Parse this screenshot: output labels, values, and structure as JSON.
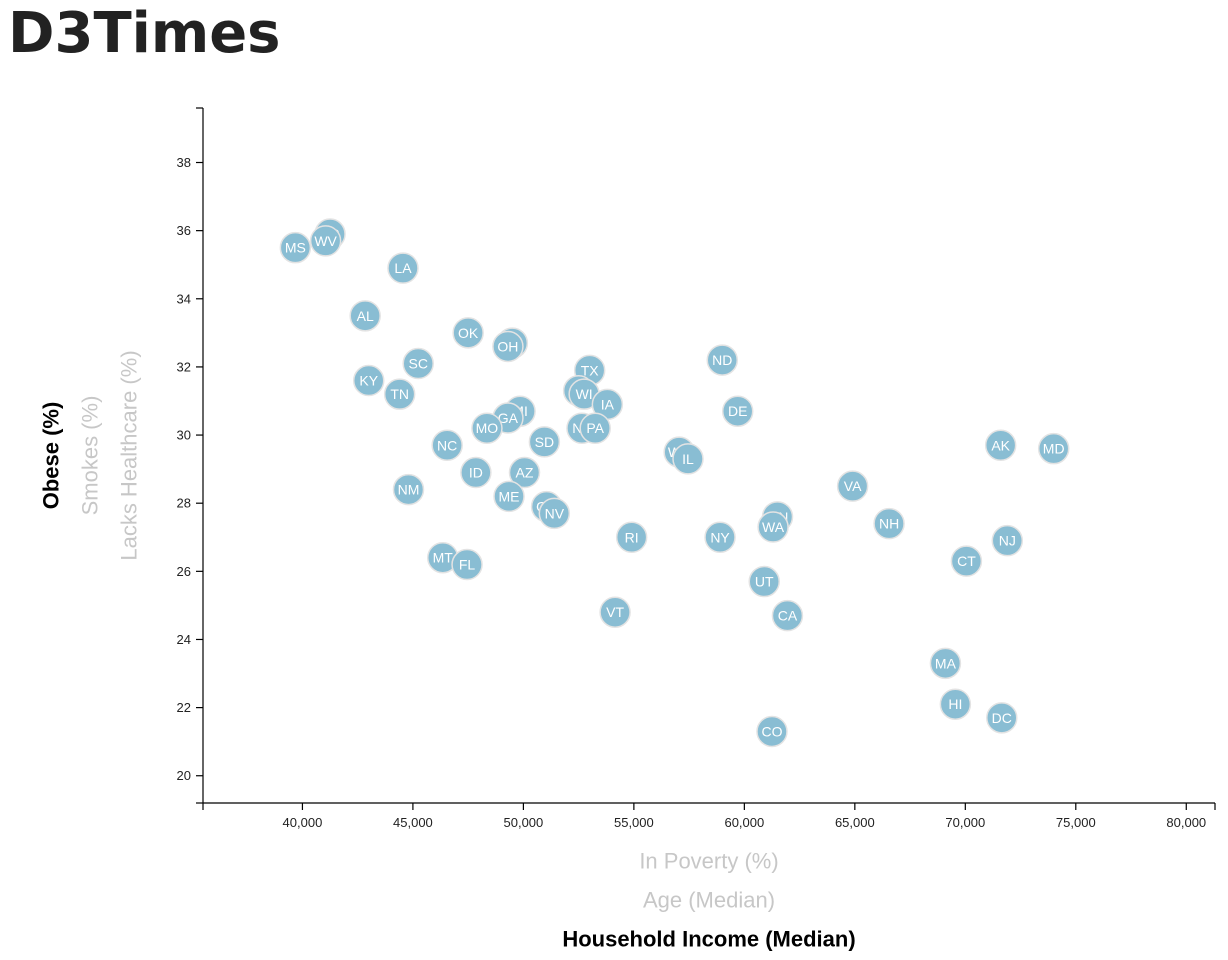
{
  "page": {
    "title": "D3Times"
  },
  "chart_data": {
    "type": "scatter",
    "x_active": "Household Income (Median)",
    "y_active": "Obese (%)",
    "x_axis_options": [
      {
        "label": "In Poverty (%)",
        "active": false
      },
      {
        "label": "Age (Median)",
        "active": false
      },
      {
        "label": "Household Income (Median)",
        "active": true
      }
    ],
    "y_axis_options": [
      {
        "label": "Obese (%)",
        "active": true
      },
      {
        "label": "Smokes (%)",
        "active": false
      },
      {
        "label": "Lacks Healthcare (%)",
        "active": false
      }
    ],
    "xlim": [
      35500,
      81300
    ],
    "ylim": [
      19.2,
      39.6
    ],
    "x_ticks": [
      40000,
      45000,
      50000,
      55000,
      60000,
      65000,
      70000,
      75000,
      80000
    ],
    "x_tick_labels": [
      "40,000",
      "45,000",
      "50,000",
      "55,000",
      "60,000",
      "65,000",
      "70,000",
      "75,000",
      "80,000"
    ],
    "y_ticks": [
      20,
      22,
      24,
      26,
      28,
      30,
      32,
      34,
      36,
      38
    ],
    "y_tick_labels": [
      "20",
      "22",
      "24",
      "26",
      "28",
      "30",
      "32",
      "34",
      "36",
      "38"
    ],
    "colors": {
      "marker": "#89bdd3",
      "marker_stroke": "#e3e3e3",
      "label": "#ffffff"
    },
    "points": [
      {
        "label": "MS",
        "x": 39680,
        "y": 35.5
      },
      {
        "label": "AR",
        "x": 41250,
        "y": 35.9
      },
      {
        "label": "WV",
        "x": 41050,
        "y": 35.7
      },
      {
        "label": "LA",
        "x": 44550,
        "y": 34.9
      },
      {
        "label": "AL",
        "x": 42840,
        "y": 33.5
      },
      {
        "label": "OK",
        "x": 47500,
        "y": 33.0
      },
      {
        "label": "IN",
        "x": 49500,
        "y": 32.7
      },
      {
        "label": "OH",
        "x": 49300,
        "y": 32.6
      },
      {
        "label": "SC",
        "x": 45240,
        "y": 32.1
      },
      {
        "label": "KY",
        "x": 43000,
        "y": 31.6
      },
      {
        "label": "TN",
        "x": 44400,
        "y": 31.2
      },
      {
        "label": "ND",
        "x": 59000,
        "y": 32.2
      },
      {
        "label": "TX",
        "x": 53000,
        "y": 31.9
      },
      {
        "label": "KS",
        "x": 52500,
        "y": 31.3
      },
      {
        "label": "WI",
        "x": 52750,
        "y": 31.2
      },
      {
        "label": "IA",
        "x": 53800,
        "y": 30.9
      },
      {
        "label": "DE",
        "x": 59700,
        "y": 30.7
      },
      {
        "label": "MI",
        "x": 49850,
        "y": 30.7
      },
      {
        "label": "GA",
        "x": 49300,
        "y": 30.5
      },
      {
        "label": "MO",
        "x": 48350,
        "y": 30.2
      },
      {
        "label": "NE",
        "x": 52650,
        "y": 30.2
      },
      {
        "label": "PA",
        "x": 53250,
        "y": 30.2
      },
      {
        "label": "SD",
        "x": 50950,
        "y": 29.8
      },
      {
        "label": "NC",
        "x": 46550,
        "y": 29.7
      },
      {
        "label": "AK",
        "x": 71600,
        "y": 29.7
      },
      {
        "label": "MD",
        "x": 74000,
        "y": 29.6
      },
      {
        "label": "WY",
        "x": 57050,
        "y": 29.5
      },
      {
        "label": "IL",
        "x": 57450,
        "y": 29.3
      },
      {
        "label": "ID",
        "x": 47850,
        "y": 28.9
      },
      {
        "label": "AZ",
        "x": 50050,
        "y": 28.9
      },
      {
        "label": "VA",
        "x": 64900,
        "y": 28.5
      },
      {
        "label": "NM",
        "x": 44800,
        "y": 28.4
      },
      {
        "label": "ME",
        "x": 49350,
        "y": 28.2
      },
      {
        "label": "OR",
        "x": 51050,
        "y": 27.9
      },
      {
        "label": "NV",
        "x": 51400,
        "y": 27.7
      },
      {
        "label": "MN",
        "x": 61500,
        "y": 27.6
      },
      {
        "label": "NH",
        "x": 66550,
        "y": 27.4
      },
      {
        "label": "WA",
        "x": 61300,
        "y": 27.3
      },
      {
        "label": "RI",
        "x": 54900,
        "y": 27.0
      },
      {
        "label": "NY",
        "x": 58900,
        "y": 27.0
      },
      {
        "label": "NJ",
        "x": 71900,
        "y": 26.9
      },
      {
        "label": "MT",
        "x": 46350,
        "y": 26.4
      },
      {
        "label": "CT",
        "x": 70050,
        "y": 26.3
      },
      {
        "label": "FL",
        "x": 47450,
        "y": 26.2
      },
      {
        "label": "UT",
        "x": 60900,
        "y": 25.7
      },
      {
        "label": "VT",
        "x": 54150,
        "y": 24.8
      },
      {
        "label": "CA",
        "x": 61950,
        "y": 24.7
      },
      {
        "label": "MA",
        "x": 69100,
        "y": 23.3
      },
      {
        "label": "HI",
        "x": 69550,
        "y": 22.1
      },
      {
        "label": "DC",
        "x": 71650,
        "y": 21.7
      },
      {
        "label": "CO",
        "x": 61250,
        "y": 21.3
      }
    ]
  }
}
